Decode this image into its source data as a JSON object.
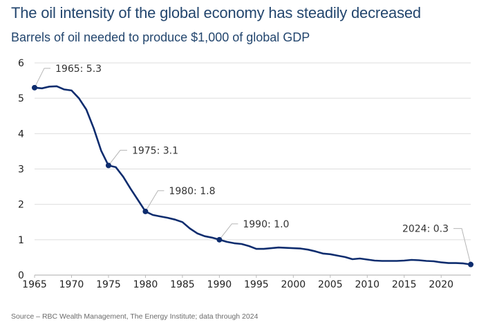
{
  "colors": {
    "title": "#23466e",
    "series_line": "#0d2c6e",
    "gridline": "#dddddd",
    "axis": "#bbbbbb",
    "leader_line": "#b5b5b5",
    "source_text": "#6b6b6b"
  },
  "chart_data": {
    "type": "line",
    "title": "The oil intensity of the global economy has steadily decreased",
    "subtitle": "Barrels of oil needed to produce $1,000 of global GDP",
    "xlabel": "",
    "ylabel": "",
    "xlim": [
      1965,
      2024
    ],
    "ylim": [
      0,
      6
    ],
    "grid": true,
    "legend": "none",
    "x_ticks": [
      1965,
      1970,
      1975,
      1980,
      1985,
      1990,
      1995,
      2000,
      2005,
      2010,
      2015,
      2020
    ],
    "y_ticks": [
      0,
      1,
      2,
      3,
      4,
      5,
      6
    ],
    "series": [
      {
        "name": "Barrels of oil per $1,000 of global GDP",
        "x": [
          1965,
          1966,
          1967,
          1968,
          1969,
          1970,
          1971,
          1972,
          1973,
          1974,
          1975,
          1976,
          1977,
          1978,
          1979,
          1980,
          1981,
          1982,
          1983,
          1984,
          1985,
          1986,
          1987,
          1988,
          1989,
          1990,
          1991,
          1992,
          1993,
          1994,
          1995,
          1996,
          1997,
          1998,
          1999,
          2000,
          2001,
          2002,
          2003,
          2004,
          2005,
          2006,
          2007,
          2008,
          2009,
          2010,
          2011,
          2012,
          2013,
          2014,
          2015,
          2016,
          2017,
          2018,
          2019,
          2020,
          2021,
          2022,
          2023,
          2024
        ],
        "values": [
          5.3,
          5.28,
          5.33,
          5.34,
          5.25,
          5.22,
          5.0,
          4.68,
          4.15,
          3.52,
          3.1,
          3.05,
          2.78,
          2.44,
          2.12,
          1.8,
          1.7,
          1.66,
          1.62,
          1.57,
          1.5,
          1.32,
          1.18,
          1.1,
          1.06,
          1.0,
          0.94,
          0.9,
          0.88,
          0.82,
          0.74,
          0.74,
          0.76,
          0.78,
          0.77,
          0.76,
          0.75,
          0.72,
          0.67,
          0.61,
          0.59,
          0.55,
          0.51,
          0.45,
          0.47,
          0.44,
          0.41,
          0.4,
          0.4,
          0.4,
          0.41,
          0.43,
          0.42,
          0.4,
          0.39,
          0.36,
          0.34,
          0.34,
          0.33,
          0.3
        ]
      }
    ],
    "annotations": [
      {
        "x": 1965,
        "y": 5.3,
        "text": "1965: 5.3"
      },
      {
        "x": 1975,
        "y": 3.1,
        "text": "1975: 3.1"
      },
      {
        "x": 1980,
        "y": 1.8,
        "text": "1980: 1.8"
      },
      {
        "x": 1990,
        "y": 1.0,
        "text": "1990: 1.0"
      },
      {
        "x": 2024,
        "y": 0.3,
        "text": "2024: 0.3"
      }
    ],
    "source": "Source – RBC Wealth Management, The Energy Institute; data through 2024"
  }
}
